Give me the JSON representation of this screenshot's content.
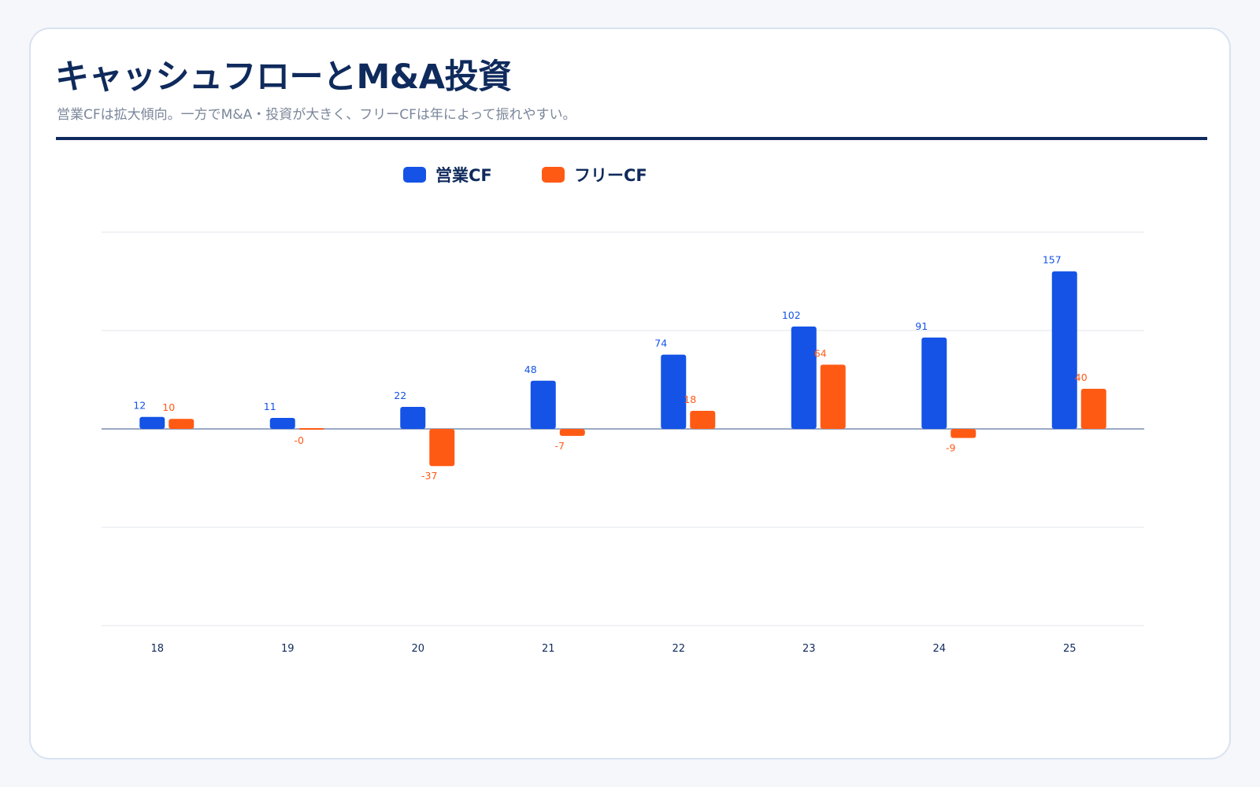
{
  "header": {
    "title": "キャッシュフローとM&A投資",
    "subtitle": "営業CFは拡大傾向。一方でM&A・投資が大きく、フリーCFは年によって振れやすい。"
  },
  "colors": {
    "operating": "#1453e6",
    "free": "#ff5a14",
    "title": "#0f2a5c",
    "grid": "#e2e6ee",
    "zero_line": "#9aa9c4"
  },
  "chart_data": {
    "type": "bar",
    "title": "",
    "xlabel": "",
    "ylabel": "",
    "categories": [
      "18",
      "19",
      "20",
      "21",
      "22",
      "23",
      "24",
      "25"
    ],
    "series": [
      {
        "name": "営業CF",
        "values": [
          12,
          11,
          22,
          48,
          74,
          102,
          91,
          157
        ],
        "labels": [
          "12",
          "11",
          "22",
          "48",
          "74",
          "102",
          "91",
          "157"
        ]
      },
      {
        "name": "フリーCF",
        "values": [
          10,
          -0.4,
          -37,
          -7,
          18,
          64,
          -9,
          40
        ],
        "labels": [
          "10",
          "-0",
          "-37",
          "-7",
          "18",
          "64",
          "-9",
          "40"
        ]
      }
    ],
    "ylim": [
      -196,
      196
    ],
    "yticks_shown": false,
    "grid": true,
    "legend_position": "top"
  }
}
